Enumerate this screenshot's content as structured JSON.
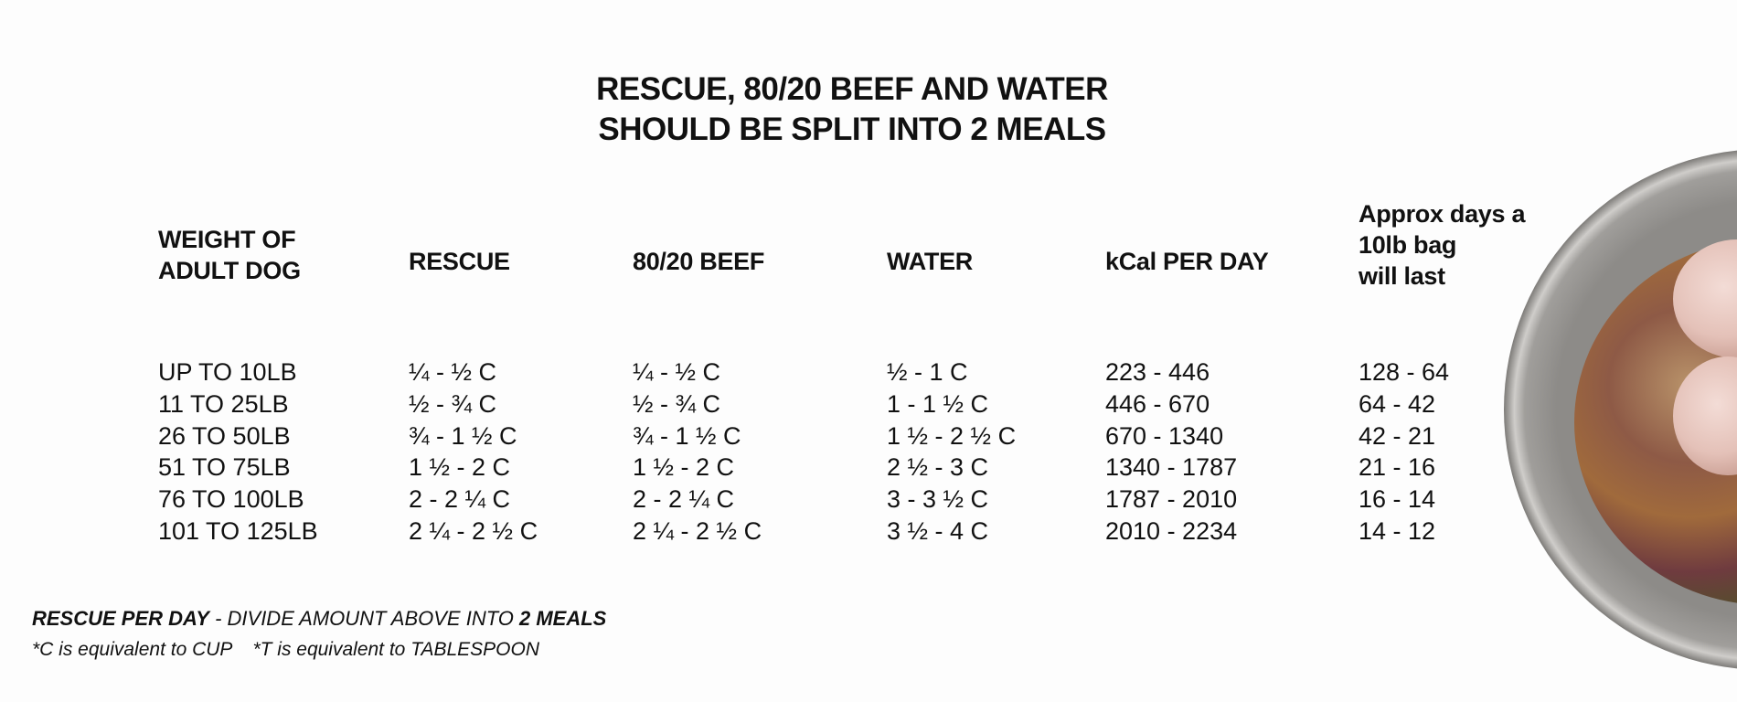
{
  "title": {
    "line1": "RESCUE, 80/20 BEEF AND WATER",
    "line2": "SHOULD BE SPLIT INTO 2 MEALS"
  },
  "headers": {
    "weight": [
      "WEIGHT OF",
      "ADULT DOG"
    ],
    "rescue": "RESCUE",
    "beef": "80/20 BEEF",
    "water": "WATER",
    "kcal": "kCal PER DAY",
    "days": [
      "Approx days a",
      "10lb bag",
      "will last"
    ]
  },
  "rows": [
    {
      "weight": "UP TO 10LB",
      "rescue": "¼ - ½ C",
      "beef": "¼ - ½ C",
      "water": "½ - 1 C",
      "kcal": "223 - 446",
      "days": "128 - 64"
    },
    {
      "weight": "11 TO 25LB",
      "rescue": "½ - ¾ C",
      "beef": "½ - ¾ C",
      "water": "1 - 1 ½ C",
      "kcal": "446 - 670",
      "days": "64 - 42"
    },
    {
      "weight": "26 TO 50LB",
      "rescue": "¾ - 1 ½ C",
      "beef": "¾ - 1 ½ C",
      "water": "1 ½ - 2 ½ C",
      "kcal": "670 - 1340",
      "days": "42 - 21"
    },
    {
      "weight": "51 TO 75LB",
      "rescue": "1 ½ - 2 C",
      "beef": "1 ½ - 2 C",
      "water": "2 ½ - 3 C",
      "kcal": "1340 - 1787",
      "days": "21 - 16"
    },
    {
      "weight": "76 TO 100LB",
      "rescue": "2 - 2 ¼ C",
      "beef": "2 - 2 ¼ C",
      "water": "3 - 3 ½ C",
      "kcal": "1787 - 2010",
      "days": "16 - 14"
    },
    {
      "weight": "101 TO 125LB",
      "rescue": "2 ¼ - 2 ½ C",
      "beef": "2 ¼ - 2 ½ C",
      "water": "3 ½ - 4 C",
      "kcal": "2010 - 2234",
      "days": "14 - 12"
    }
  ],
  "footer": {
    "bold1": "RESCUE PER DAY",
    "mid": " - DIVIDE AMOUNT ABOVE INTO ",
    "bold2": "2 MEALS",
    "note_cup": "*C is equivalent to CUP",
    "note_tbsp": "*T is equivalent to TABLESPOON"
  }
}
